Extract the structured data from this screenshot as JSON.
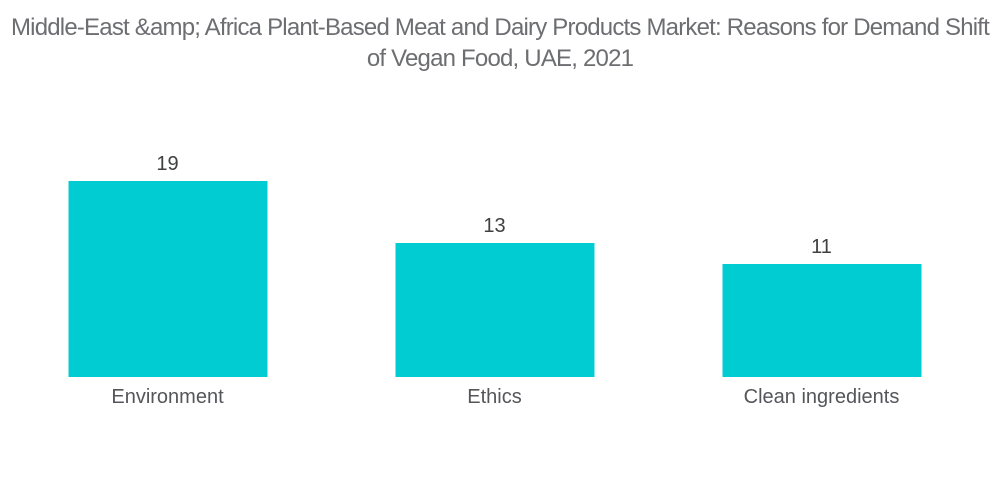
{
  "title": {
    "line1": "Middle-East &amp; Africa Plant-Based Meat and Dairy Products Market: Reasons for Demand Shift",
    "line2": "of Vegan Food, UAE, 2021"
  },
  "chart_data": {
    "type": "bar",
    "title": "Middle-East &amp; Africa Plant-Based Meat and Dairy Products Market: Reasons for Demand Shift of Vegan Food, UAE, 2021",
    "categories": [
      "Environment",
      "Ethics",
      "Clean ingredients"
    ],
    "values": [
      19,
      13,
      11
    ],
    "xlabel": "",
    "ylabel": "",
    "ylim": [
      0,
      19
    ],
    "grid": false,
    "legend": false,
    "value_labels": [
      "19",
      "13",
      "11"
    ],
    "bar_color": "#00CCD2"
  },
  "colors": {
    "background": "#ffffff",
    "bar": "#00CCD2",
    "title_text": "#6d6e71",
    "value_text": "#3f4040",
    "category_text": "#55565a"
  }
}
